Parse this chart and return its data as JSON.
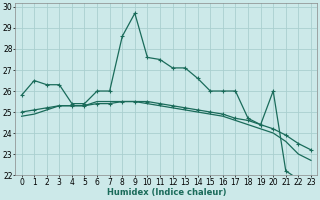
{
  "xlabel": "Humidex (Indice chaleur)",
  "xlim": [
    -0.5,
    23.5
  ],
  "ylim": [
    22,
    30.2
  ],
  "yticks": [
    22,
    23,
    24,
    25,
    26,
    27,
    28,
    29,
    30
  ],
  "xticks": [
    0,
    1,
    2,
    3,
    4,
    5,
    6,
    7,
    8,
    9,
    10,
    11,
    12,
    13,
    14,
    15,
    16,
    17,
    18,
    19,
    20,
    21,
    22,
    23
  ],
  "bg_color": "#cce9e9",
  "line_color": "#1a6b5a",
  "grid_color": "#aacfcf",
  "series1_x": [
    0,
    1,
    2,
    3,
    4,
    5,
    6,
    7,
    8,
    9,
    10,
    11,
    12,
    13,
    14,
    15,
    16,
    17,
    18,
    19,
    20,
    21,
    22,
    23
  ],
  "series1_y": [
    25.8,
    26.5,
    26.3,
    26.3,
    25.4,
    25.4,
    26.0,
    26.0,
    28.6,
    29.7,
    27.6,
    27.5,
    27.1,
    27.1,
    26.6,
    26.0,
    26.0,
    26.0,
    24.7,
    24.4,
    26.0,
    22.2,
    21.8,
    21.7
  ],
  "series2_x": [
    0,
    1,
    2,
    3,
    4,
    5,
    6,
    7,
    8,
    9,
    10,
    11,
    12,
    13,
    14,
    15,
    16,
    17,
    18,
    19,
    20,
    21,
    22,
    23
  ],
  "series2_y": [
    25.0,
    25.1,
    25.2,
    25.3,
    25.3,
    25.3,
    25.4,
    25.4,
    25.5,
    25.5,
    25.5,
    25.4,
    25.3,
    25.2,
    25.1,
    25.0,
    24.9,
    24.7,
    24.6,
    24.4,
    24.2,
    23.9,
    23.5,
    23.2
  ],
  "series3_x": [
    0,
    1,
    2,
    3,
    4,
    5,
    6,
    7,
    8,
    9,
    10,
    11,
    12,
    13,
    14,
    15,
    16,
    17,
    18,
    19,
    20,
    21,
    22,
    23
  ],
  "series3_y": [
    24.8,
    24.9,
    25.1,
    25.3,
    25.3,
    25.3,
    25.5,
    25.5,
    25.5,
    25.5,
    25.4,
    25.3,
    25.2,
    25.1,
    25.0,
    24.9,
    24.8,
    24.6,
    24.4,
    24.2,
    24.0,
    23.6,
    23.0,
    22.7
  ],
  "label_fontsize": 6,
  "tick_fontsize": 5.5
}
